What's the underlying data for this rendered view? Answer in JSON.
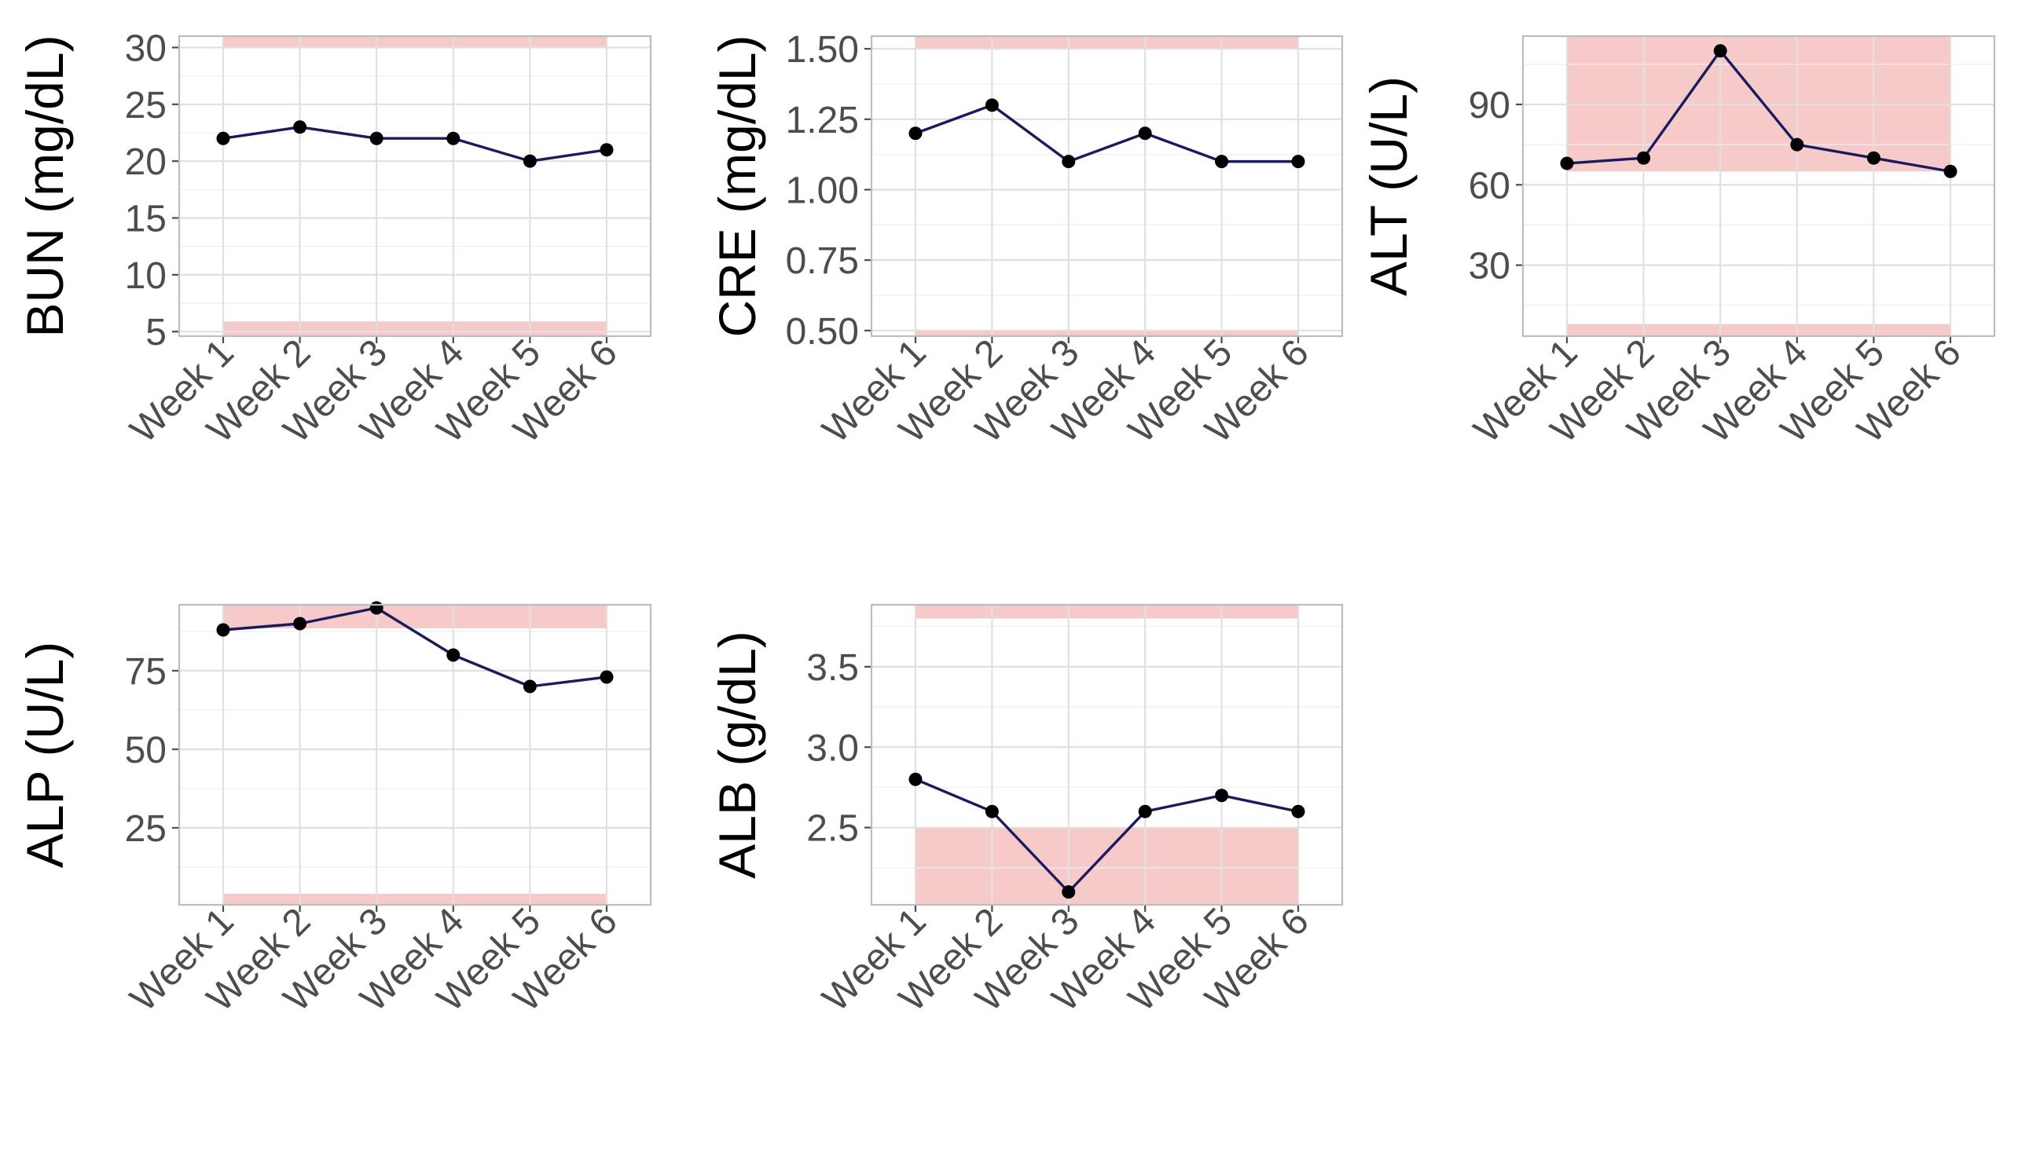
{
  "colors": {
    "line": "#1a1a5e",
    "point": "#000000",
    "band": "#f7caca",
    "grid_major": "#e0e0e0",
    "grid_minor": "#efefef",
    "frame": "#bdbdbd",
    "tick_text": "#4d4d4d",
    "title_text": "#000000"
  },
  "chart_data": [
    {
      "type": "line",
      "title": "",
      "xlabel": "",
      "ylabel": "BUN (mg/dL)",
      "categories": [
        "Week 1",
        "Week 2",
        "Week 3",
        "Week 4",
        "Week 5",
        "Week 6"
      ],
      "values": [
        22,
        23,
        22,
        22,
        20,
        21
      ],
      "ylim": [
        4.6,
        31.0
      ],
      "yticks": [
        5,
        10,
        15,
        20,
        25,
        30
      ],
      "ytick_labels": [
        "5",
        "10",
        "15",
        "20",
        "25",
        "30"
      ],
      "abnormal_bands": [
        [
          4.6,
          5.9
        ],
        [
          29.95,
          31.0
        ]
      ],
      "grid": true
    },
    {
      "type": "line",
      "title": "",
      "xlabel": "",
      "ylabel": "CRE (mg/dL)",
      "categories": [
        "Week 1",
        "Week 2",
        "Week 3",
        "Week 4",
        "Week 5",
        "Week 6"
      ],
      "values": [
        1.2,
        1.3,
        1.1,
        1.2,
        1.1,
        1.1
      ],
      "ylim": [
        0.48,
        1.545
      ],
      "yticks": [
        0.5,
        0.75,
        1.0,
        1.25,
        1.5
      ],
      "ytick_labels": [
        "0.50",
        "0.75",
        "1.00",
        "1.25",
        "1.50"
      ],
      "abnormal_bands": [
        [
          0.48,
          0.5
        ],
        [
          1.5,
          1.545
        ]
      ],
      "grid": true
    },
    {
      "type": "line",
      "title": "",
      "xlabel": "",
      "ylabel": "ALT (U/L)",
      "categories": [
        "Week 1",
        "Week 2",
        "Week 3",
        "Week 4",
        "Week 5",
        "Week 6"
      ],
      "values": [
        68,
        70,
        110,
        75,
        70,
        65
      ],
      "ylim": [
        3.5,
        115.5
      ],
      "yticks": [
        30,
        60,
        90
      ],
      "ytick_labels": [
        "30",
        "60",
        "90"
      ],
      "abnormal_bands": [
        [
          3.5,
          8.0
        ],
        [
          65.0,
          115.5
        ]
      ],
      "grid": true
    },
    {
      "type": "line",
      "title": "",
      "xlabel": "",
      "ylabel": "ALP (U/L)",
      "categories": [
        "Week 1",
        "Week 2",
        "Week 3",
        "Week 4",
        "Week 5",
        "Week 6"
      ],
      "values": [
        88,
        90,
        95,
        80,
        70,
        73
      ],
      "ylim": [
        0.5,
        96.0
      ],
      "yticks": [
        25,
        50,
        75
      ],
      "ytick_labels": [
        "25",
        "50",
        "75"
      ],
      "abnormal_bands": [
        [
          0.5,
          4.0
        ],
        [
          88.5,
          96.0
        ]
      ],
      "grid": true
    },
    {
      "type": "line",
      "title": "",
      "xlabel": "",
      "ylabel": "ALB (g/dL)",
      "categories": [
        "Week 1",
        "Week 2",
        "Week 3",
        "Week 4",
        "Week 5",
        "Week 6"
      ],
      "values": [
        2.8,
        2.6,
        2.1,
        2.6,
        2.7,
        2.6
      ],
      "ylim": [
        2.02,
        3.885
      ],
      "yticks": [
        2.5,
        3.0,
        3.5
      ],
      "ytick_labels": [
        "2.5",
        "3.0",
        "3.5"
      ],
      "abnormal_bands": [
        [
          2.02,
          2.5
        ],
        [
          3.8,
          3.885
        ]
      ],
      "grid": true
    }
  ]
}
